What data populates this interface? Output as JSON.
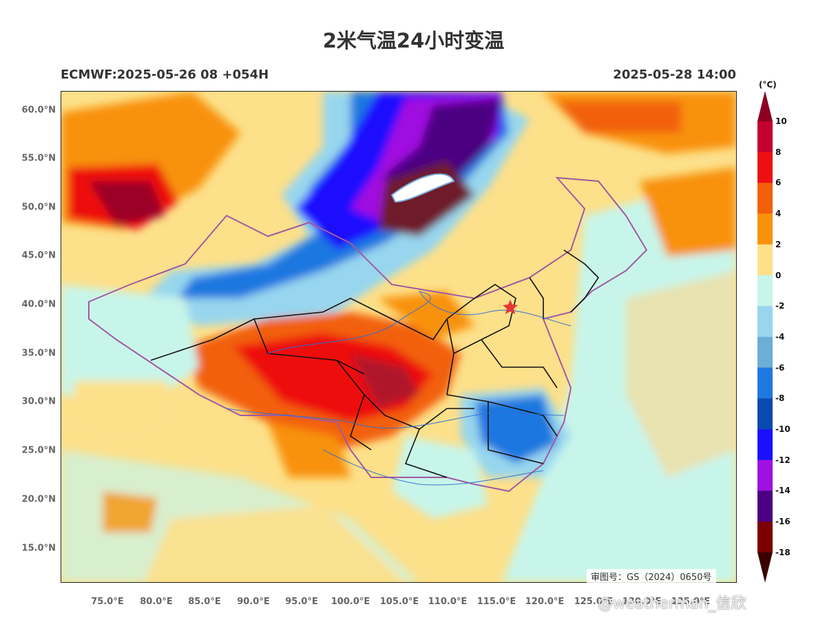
{
  "title": "2米气温24小时变温",
  "subtitle_left": "ECMWF:2025-05-26 08 +054H",
  "subtitle_right": "2025-05-28 14:00",
  "approval_number": "审图号：GS（2024）0650号",
  "watermark": "@weatherman_信欣",
  "map": {
    "lon_range": [
      70,
      140
    ],
    "lat_range": [
      11.5,
      62
    ],
    "lat_ticks": [
      "60.0°N",
      "55.0°N",
      "50.0°N",
      "45.0°N",
      "40.0°N",
      "35.0°N",
      "30.0°N",
      "25.0°N",
      "20.0°N",
      "15.0°N"
    ],
    "lon_ticks": [
      "75.0°E",
      "80.0°E",
      "85.0°E",
      "90.0°E",
      "95.0°E",
      "100.0°E",
      "105.0°E",
      "110.0°E",
      "115.0°E",
      "120.0°E",
      "125.0°E",
      "130.0°E",
      "135.0°E"
    ],
    "marker": {
      "name": "Beijing",
      "lon": 116.4,
      "lat": 39.9,
      "color": "#e53935"
    }
  },
  "colorbar": {
    "unit": "(°C)",
    "labels": [
      "10",
      "8",
      "6",
      "4",
      "2",
      "0",
      "-2",
      "-4",
      "-6",
      "-8",
      "-10",
      "-12",
      "-14",
      "-16",
      "-18"
    ],
    "colors": [
      "#c4002e",
      "#ee1010",
      "#f2600a",
      "#f8920a",
      "#fde08a",
      "#c8f5ea",
      "#97d6ee",
      "#6baed6",
      "#1f78e0",
      "#0a4ab0",
      "#1a10ff",
      "#a010e0",
      "#4b0082",
      "#7a0000"
    ],
    "top_color": "#8b0020",
    "bottom_color": "#3a0000"
  }
}
